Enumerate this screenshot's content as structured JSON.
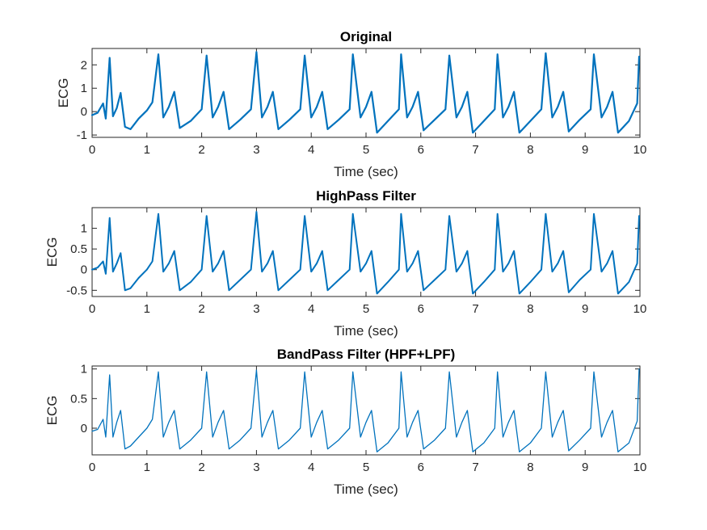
{
  "chart_data": [
    {
      "type": "line",
      "title": "Original",
      "xlabel": "Time (sec)",
      "ylabel": "ECG",
      "xlim": [
        0,
        10
      ],
      "ylim": [
        -1.1,
        2.7
      ],
      "xticks": [
        0,
        1,
        2,
        3,
        4,
        5,
        6,
        7,
        8,
        9,
        10
      ],
      "yticks": [
        -1,
        0,
        1,
        2
      ],
      "grid": false,
      "line_color": "#0072BD",
      "beat_times": [
        0.32,
        1.21,
        2.09,
        3.0,
        3.88,
        4.76,
        5.64,
        6.52,
        7.4,
        8.28,
        9.16,
        10.0
      ],
      "series": [
        {
          "x": [
            0.0,
            0.1,
            0.2,
            0.25,
            0.32,
            0.38,
            0.45,
            0.52,
            0.6,
            0.7,
            0.85,
            1.0,
            1.1,
            1.21,
            1.3,
            1.4,
            1.5,
            1.6,
            1.8,
            2.0,
            2.09,
            2.2,
            2.3,
            2.4,
            2.5,
            2.7,
            2.9,
            3.0,
            3.1,
            3.2,
            3.3,
            3.4,
            3.6,
            3.8,
            3.88,
            4.0,
            4.1,
            4.2,
            4.3,
            4.5,
            4.7,
            4.76,
            4.9,
            5.0,
            5.1,
            5.2,
            5.4,
            5.6,
            5.64,
            5.75,
            5.85,
            5.95,
            6.05,
            6.25,
            6.45,
            6.52,
            6.65,
            6.75,
            6.85,
            6.95,
            7.15,
            7.35,
            7.4,
            7.5,
            7.6,
            7.7,
            7.8,
            8.0,
            8.2,
            8.28,
            8.4,
            8.5,
            8.6,
            8.7,
            8.9,
            9.1,
            9.16,
            9.3,
            9.4,
            9.5,
            9.6,
            9.8,
            9.95,
            10.0
          ],
          "y": [
            -0.15,
            -0.05,
            0.35,
            -0.3,
            2.3,
            -0.2,
            0.15,
            0.8,
            -0.65,
            -0.75,
            -0.3,
            0.05,
            0.4,
            2.45,
            -0.25,
            0.2,
            0.85,
            -0.7,
            -0.4,
            0.1,
            2.4,
            -0.25,
            0.2,
            0.85,
            -0.75,
            -0.35,
            0.1,
            2.55,
            -0.25,
            0.2,
            0.85,
            -0.75,
            -0.35,
            0.1,
            2.4,
            -0.25,
            0.2,
            0.85,
            -0.75,
            -0.35,
            0.1,
            2.45,
            -0.25,
            0.2,
            0.85,
            -0.9,
            -0.4,
            0.1,
            2.45,
            -0.25,
            0.2,
            0.85,
            -0.8,
            -0.35,
            0.1,
            2.4,
            -0.25,
            0.2,
            0.85,
            -0.9,
            -0.4,
            0.1,
            2.45,
            -0.25,
            0.2,
            0.85,
            -0.9,
            -0.4,
            0.1,
            2.5,
            -0.25,
            0.2,
            0.85,
            -0.85,
            -0.35,
            0.1,
            2.45,
            -0.25,
            0.2,
            0.85,
            -0.9,
            -0.4,
            0.35,
            2.35
          ]
        }
      ]
    },
    {
      "type": "line",
      "title": "HighPass Filter",
      "xlabel": "Time (sec)",
      "ylabel": "ECG",
      "xlim": [
        0,
        10
      ],
      "ylim": [
        -0.65,
        1.5
      ],
      "xticks": [
        0,
        1,
        2,
        3,
        4,
        5,
        6,
        7,
        8,
        9,
        10
      ],
      "yticks": [
        -0.5,
        0,
        0.5,
        1
      ],
      "grid": false,
      "line_color": "#0072BD",
      "beat_times": [
        0.32,
        1.21,
        2.09,
        3.0,
        3.88,
        4.76,
        5.64,
        6.52,
        7.4,
        8.28,
        9.16,
        10.0
      ],
      "series": [
        {
          "x": [
            0.0,
            0.1,
            0.2,
            0.25,
            0.32,
            0.38,
            0.45,
            0.52,
            0.6,
            0.7,
            0.85,
            1.0,
            1.1,
            1.21,
            1.3,
            1.4,
            1.5,
            1.6,
            1.8,
            2.0,
            2.09,
            2.2,
            2.3,
            2.4,
            2.5,
            2.7,
            2.9,
            3.0,
            3.1,
            3.2,
            3.3,
            3.4,
            3.6,
            3.8,
            3.88,
            4.0,
            4.1,
            4.2,
            4.3,
            4.5,
            4.7,
            4.76,
            4.9,
            5.0,
            5.1,
            5.2,
            5.4,
            5.6,
            5.64,
            5.75,
            5.85,
            5.95,
            6.05,
            6.25,
            6.45,
            6.52,
            6.65,
            6.75,
            6.85,
            6.95,
            7.15,
            7.35,
            7.4,
            7.5,
            7.6,
            7.7,
            7.8,
            8.0,
            8.2,
            8.28,
            8.4,
            8.5,
            8.6,
            8.7,
            8.9,
            9.1,
            9.16,
            9.3,
            9.4,
            9.5,
            9.6,
            9.8,
            9.95,
            10.0
          ],
          "y": [
            0.0,
            0.05,
            0.2,
            -0.1,
            1.25,
            -0.05,
            0.15,
            0.4,
            -0.5,
            -0.45,
            -0.2,
            0.0,
            0.2,
            1.35,
            -0.05,
            0.15,
            0.45,
            -0.5,
            -0.3,
            0.0,
            1.3,
            -0.05,
            0.15,
            0.45,
            -0.5,
            -0.25,
            0.0,
            1.4,
            -0.05,
            0.15,
            0.45,
            -0.5,
            -0.25,
            0.0,
            1.3,
            -0.05,
            0.15,
            0.45,
            -0.5,
            -0.25,
            0.0,
            1.35,
            -0.05,
            0.15,
            0.45,
            -0.58,
            -0.3,
            0.0,
            1.35,
            -0.05,
            0.15,
            0.45,
            -0.5,
            -0.25,
            0.0,
            1.3,
            -0.05,
            0.15,
            0.45,
            -0.58,
            -0.3,
            0.0,
            1.35,
            -0.05,
            0.15,
            0.45,
            -0.58,
            -0.3,
            0.0,
            1.35,
            -0.05,
            0.15,
            0.45,
            -0.55,
            -0.25,
            0.0,
            1.35,
            -0.05,
            0.15,
            0.45,
            -0.58,
            -0.3,
            0.15,
            1.3
          ]
        }
      ]
    },
    {
      "type": "line",
      "title": "BandPass Filter (HPF+LPF)",
      "xlabel": "Time (sec)",
      "ylabel": "ECG",
      "xlim": [
        0,
        10
      ],
      "ylim": [
        -0.45,
        1.05
      ],
      "xticks": [
        0,
        1,
        2,
        3,
        4,
        5,
        6,
        7,
        8,
        9,
        10
      ],
      "yticks": [
        0,
        0.5,
        1
      ],
      "grid": false,
      "line_color": "#0072BD",
      "beat_times": [
        0.32,
        1.21,
        2.09,
        3.0,
        3.88,
        4.76,
        5.64,
        6.52,
        7.4,
        8.28,
        9.16,
        10.0
      ],
      "series": [
        {
          "x": [
            0.0,
            0.1,
            0.2,
            0.25,
            0.32,
            0.38,
            0.45,
            0.52,
            0.6,
            0.7,
            0.85,
            1.0,
            1.1,
            1.21,
            1.3,
            1.4,
            1.5,
            1.6,
            1.8,
            2.0,
            2.09,
            2.2,
            2.3,
            2.4,
            2.5,
            2.7,
            2.9,
            3.0,
            3.1,
            3.2,
            3.3,
            3.4,
            3.6,
            3.8,
            3.88,
            4.0,
            4.1,
            4.2,
            4.3,
            4.5,
            4.7,
            4.76,
            4.9,
            5.0,
            5.1,
            5.2,
            5.4,
            5.6,
            5.64,
            5.75,
            5.85,
            5.95,
            6.05,
            6.25,
            6.45,
            6.52,
            6.65,
            6.75,
            6.85,
            6.95,
            7.15,
            7.35,
            7.4,
            7.5,
            7.6,
            7.7,
            7.8,
            8.0,
            8.2,
            8.28,
            8.4,
            8.5,
            8.6,
            8.7,
            8.9,
            9.1,
            9.16,
            9.3,
            9.4,
            9.5,
            9.6,
            9.8,
            9.95,
            10.0
          ],
          "y": [
            -0.05,
            -0.02,
            0.15,
            -0.15,
            0.9,
            -0.15,
            0.1,
            0.3,
            -0.35,
            -0.3,
            -0.15,
            0.0,
            0.15,
            0.95,
            -0.15,
            0.1,
            0.3,
            -0.35,
            -0.2,
            0.0,
            0.95,
            -0.15,
            0.1,
            0.3,
            -0.35,
            -0.2,
            0.0,
            0.98,
            -0.15,
            0.1,
            0.3,
            -0.35,
            -0.2,
            0.0,
            0.95,
            -0.15,
            0.1,
            0.3,
            -0.35,
            -0.2,
            0.0,
            0.95,
            -0.15,
            0.1,
            0.3,
            -0.4,
            -0.25,
            0.0,
            0.95,
            -0.15,
            0.1,
            0.3,
            -0.35,
            -0.2,
            0.0,
            0.95,
            -0.15,
            0.1,
            0.3,
            -0.4,
            -0.25,
            0.0,
            0.95,
            -0.15,
            0.1,
            0.3,
            -0.4,
            -0.25,
            0.0,
            0.95,
            -0.15,
            0.1,
            0.3,
            -0.38,
            -0.2,
            0.0,
            0.95,
            -0.15,
            0.1,
            0.3,
            -0.4,
            -0.25,
            0.12,
            1.0
          ]
        }
      ]
    }
  ]
}
